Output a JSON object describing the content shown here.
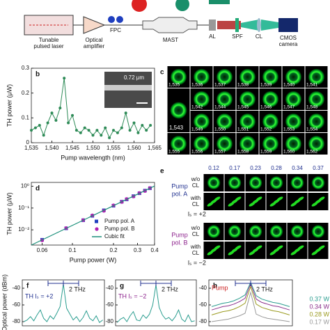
{
  "setup": {
    "laser": [
      "Tunable",
      "pulsed laser"
    ],
    "amplifier": [
      "Optical",
      "amplifier"
    ],
    "fpc": "FPC",
    "mast": "MAST",
    "al": "AL",
    "spf": "SPF",
    "cl": "CL",
    "camera": [
      "CMOS",
      "camera"
    ]
  },
  "panel_c": {
    "label": "c",
    "big": "1,543",
    "rows": [
      [
        "1,535",
        "1,536",
        "1,537",
        "1,538",
        "1,539",
        "1,540",
        "1,541"
      ],
      [
        "1,542",
        "1,544",
        "1,545",
        "1,546",
        "1,547",
        "1,548"
      ],
      [
        "1,549",
        "1,550",
        "1,551",
        "1,552",
        "1,553",
        "1,554"
      ],
      [
        "1,555",
        "1,556",
        "1,557",
        "1,558",
        "1,559",
        "1,560",
        "1,562"
      ]
    ]
  },
  "panel_e": {
    "label": "e",
    "powers": [
      "0.12",
      "0.17",
      "0.23",
      "0.28",
      "0.34",
      "0.37"
    ],
    "groups": [
      {
        "name": [
          "Pump",
          "pol. A"
        ],
        "color": "#1f2f8f",
        "rows": [
          [
            "w/o",
            "CL"
          ],
          [
            "with",
            "CL"
          ]
        ],
        "charge": "lₛ = +2"
      },
      {
        "name": [
          "Pump",
          "pol. B"
        ],
        "color": "#8b1f8b",
        "rows": [
          [
            "w/o",
            "CL"
          ],
          [
            "with",
            "CL"
          ]
        ],
        "charge": "lₛ = −2"
      }
    ]
  },
  "chart_data": [
    {
      "type": "line",
      "label": "b",
      "xlabel": "Pump wavelength (nm)",
      "ylabel": "TH power (μW)",
      "annotation": "0.72 μm",
      "x": [
        1535,
        1536,
        1537,
        1538,
        1539,
        1540,
        1541,
        1542,
        1543,
        1544,
        1545,
        1546,
        1547,
        1548,
        1549,
        1550,
        1551,
        1552,
        1553,
        1554,
        1555,
        1556,
        1557,
        1558,
        1559,
        1560,
        1561,
        1562,
        1563,
        1564
      ],
      "series": [
        {
          "color": "#2e8b57",
          "values": [
            0.05,
            0.06,
            0.07,
            0.03,
            0.08,
            0.12,
            0.09,
            0.14,
            0.26,
            0.08,
            0.11,
            0.05,
            0.04,
            0.06,
            0.05,
            0.03,
            0.05,
            0.03,
            0.06,
            0.02,
            0.05,
            0.04,
            0.06,
            0.12,
            0.05,
            0.08,
            0.04,
            0.07,
            0.05,
            0.07
          ]
        }
      ],
      "xlim": [
        1535,
        1565
      ],
      "xticks": [
        {
          "value": 1535,
          "label": "1,535"
        },
        {
          "value": 1540,
          "label": "1,540"
        },
        {
          "value": 1545,
          "label": "1,545"
        },
        {
          "value": 1550,
          "label": "1,550"
        },
        {
          "value": 1555,
          "label": "1,555"
        },
        {
          "value": 1560,
          "label": "1,560"
        },
        {
          "value": 1565,
          "label": "1,565"
        }
      ],
      "ylim": [
        0,
        0.3
      ],
      "yticks": [
        0,
        0.1,
        0.2,
        0.3
      ]
    },
    {
      "type": "scatter",
      "label": "d",
      "xlabel": "Pump power (W)",
      "ylabel": "TH power (μW)",
      "xlog": true,
      "ylog": true,
      "xlim": [
        0.05,
        0.4
      ],
      "xticks": [
        0.06,
        0.1,
        0.2,
        0.3,
        0.4
      ],
      "ylim": [
        0.002,
        1.5
      ],
      "yticks": [
        {
          "value": 0.01,
          "label": "10⁻²"
        },
        {
          "value": 0.1,
          "label": "10⁻¹"
        },
        {
          "value": 1,
          "label": "10⁰"
        }
      ],
      "series": [
        {
          "name": "Pump pol. A",
          "color": "#1f3fbf",
          "marker": "square",
          "x": [
            0.06,
            0.09,
            0.12,
            0.14,
            0.17,
            0.2,
            0.23,
            0.25,
            0.28,
            0.31,
            0.34,
            0.37
          ],
          "values": [
            0.0035,
            0.0117,
            0.0276,
            0.0439,
            0.0786,
            0.128,
            0.195,
            0.25,
            0.351,
            0.477,
            0.629,
            0.81
          ]
        },
        {
          "name": "Pump pol. B",
          "color": "#b01fb0",
          "marker": "circle",
          "x": [
            0.06,
            0.09,
            0.12,
            0.14,
            0.17,
            0.2,
            0.23,
            0.25,
            0.28,
            0.31,
            0.34,
            0.37
          ],
          "values": [
            0.0033,
            0.012,
            0.028,
            0.046,
            0.075,
            0.133,
            0.19,
            0.26,
            0.34,
            0.49,
            0.61,
            0.83
          ]
        },
        {
          "name": "Cubic fit",
          "color": "#1a8f7a",
          "marker": "line",
          "x": [
            0.05,
            0.4
          ],
          "values": [
            0.002,
            1.024
          ]
        }
      ]
    },
    {
      "type": "spectrum",
      "label": "f",
      "ylabel": "Optical power (dBm)",
      "annotations": [
        "TH lₛ = +2",
        "2 THz"
      ],
      "ylim": [
        -85,
        -30
      ],
      "yticks": [
        -40,
        -60,
        -80
      ],
      "series": [
        {
          "color": "#2a9d8f",
          "values": [
            -80,
            -78,
            -74,
            -79,
            -72,
            -66,
            -76,
            -80,
            -73,
            -77,
            -70,
            -62,
            -35,
            -64,
            -71,
            -78,
            -74,
            -80,
            -75,
            -67,
            -76,
            -79,
            -73,
            -81,
            -78
          ]
        }
      ]
    },
    {
      "type": "spectrum",
      "label": "g",
      "annotations": [
        "TH lₛ = −2",
        "2 THz"
      ],
      "ylim": [
        -85,
        -30
      ],
      "yticks": [
        -40,
        -60,
        -80
      ],
      "series": [
        {
          "color": "#2a9d8f",
          "values": [
            -81,
            -77,
            -75,
            -80,
            -73,
            -68,
            -78,
            -79,
            -72,
            -76,
            -71,
            -60,
            -36,
            -63,
            -72,
            -77,
            -75,
            -79,
            -74,
            -66,
            -77,
            -80,
            -72,
            -80,
            -79
          ]
        }
      ]
    },
    {
      "type": "spectrum",
      "label": "h",
      "annotations": [
        "Pump",
        "2 THz"
      ],
      "ylim": [
        -85,
        -30
      ],
      "yticks": [
        -40,
        -60,
        -80
      ],
      "series": [
        {
          "name": "0.37 W",
          "color": "#2a9d8f",
          "values": [
            -62,
            -60,
            -58,
            -57,
            -55,
            -52,
            -48,
            -33,
            -49,
            -53,
            -55,
            -57,
            -58,
            -60,
            -62
          ]
        },
        {
          "name": "0.34 W",
          "color": "#8b2f8b",
          "values": [
            -66,
            -64,
            -62,
            -61,
            -59,
            -56,
            -52,
            -35,
            -53,
            -57,
            -59,
            -61,
            -62,
            -64,
            -66
          ]
        },
        {
          "name": "0.28 W",
          "color": "#9a9a1e",
          "values": [
            -72,
            -70,
            -68,
            -67,
            -65,
            -62,
            -58,
            -38,
            -59,
            -63,
            -65,
            -67,
            -68,
            -70,
            -72
          ]
        },
        {
          "name": "0.17 W",
          "color": "#999999",
          "values": [
            -80,
            -79,
            -78,
            -77,
            -75,
            -73,
            -70,
            -45,
            -71,
            -74,
            -76,
            -77,
            -78,
            -79,
            -80
          ]
        }
      ]
    }
  ]
}
